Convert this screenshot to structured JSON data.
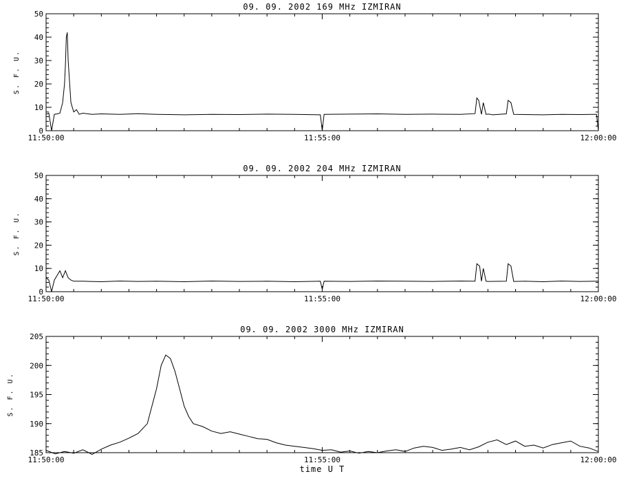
{
  "chart_data": [
    {
      "type": "line",
      "title": "09.  09.  2002    169 MHz    IZMIRAN",
      "ylabel": "S. F. U.",
      "xlabel": "",
      "xlim": [
        "11:50:00",
        "12:00:00"
      ],
      "ylim": [
        0,
        50
      ],
      "yticks": [
        "0",
        "10",
        "20",
        "30",
        "40",
        "50"
      ],
      "xticks": [
        "11:50:00",
        "11:55:00",
        "12:00:00"
      ],
      "series": [
        {
          "x": [
            "11:50:00",
            "11:50:03",
            "11:50:06",
            "11:50:09",
            "11:50:12",
            "11:50:15",
            "11:50:18",
            "11:50:20",
            "11:50:21",
            "11:50:22",
            "11:50:23",
            "11:50:24",
            "11:50:27",
            "11:50:30",
            "11:50:33",
            "11:50:36",
            "11:50:40",
            "11:50:50",
            "11:51:00",
            "11:51:20",
            "11:51:40",
            "11:52:00",
            "11:52:30",
            "11:53:00",
            "11:53:30",
            "11:54:00",
            "11:54:30",
            "11:54:58",
            "11:55:00",
            "11:55:02",
            "11:55:30",
            "11:56:00",
            "11:56:30",
            "11:57:00",
            "11:57:30",
            "11:57:46",
            "11:57:48",
            "11:57:50",
            "11:57:53",
            "11:57:55",
            "11:57:58",
            "11:58:00",
            "11:58:03",
            "11:58:05",
            "11:58:20",
            "11:58:22",
            "11:58:25",
            "11:58:28",
            "11:58:40",
            "11:59:00",
            "11:59:20",
            "11:59:40",
            "11:59:55",
            "11:59:58",
            "12:00:00"
          ],
          "values": [
            7,
            7.5,
            0,
            7,
            7.2,
            7.5,
            12,
            20,
            28,
            40,
            42,
            30,
            12,
            8,
            9,
            7,
            7.5,
            7,
            7.2,
            7,
            7.3,
            7,
            6.8,
            7,
            6.9,
            7.1,
            7,
            6.8,
            0,
            7,
            7.1,
            7.2,
            7,
            7.1,
            7,
            7.3,
            14,
            13,
            7,
            12,
            7,
            7.1,
            7,
            6.8,
            7.2,
            13,
            12,
            7,
            6.9,
            6.8,
            7,
            6.9,
            7,
            7,
            0
          ]
        }
      ]
    },
    {
      "type": "line",
      "title": "09.  09.  2002    204 MHz    IZMIRAN",
      "ylabel": "S. F. U.",
      "xlabel": "",
      "xlim": [
        "11:50:00",
        "12:00:00"
      ],
      "ylim": [
        0,
        50
      ],
      "yticks": [
        "0",
        "10",
        "20",
        "30",
        "40",
        "50"
      ],
      "xticks": [
        "11:50:00",
        "11:55:00",
        "12:00:00"
      ],
      "series": [
        {
          "x": [
            "11:50:00",
            "11:50:03",
            "11:50:06",
            "11:50:09",
            "11:50:12",
            "11:50:15",
            "11:50:18",
            "11:50:21",
            "11:50:24",
            "11:50:27",
            "11:50:30",
            "11:50:40",
            "11:51:00",
            "11:51:20",
            "11:51:40",
            "11:52:00",
            "11:52:30",
            "11:53:00",
            "11:53:30",
            "11:54:00",
            "11:54:30",
            "11:54:58",
            "11:55:00",
            "11:55:02",
            "11:55:30",
            "11:56:00",
            "11:56:30",
            "11:57:00",
            "11:57:30",
            "11:57:46",
            "11:57:48",
            "11:57:51",
            "11:57:53",
            "11:57:55",
            "11:57:58",
            "11:58:00",
            "11:58:20",
            "11:58:22",
            "11:58:25",
            "11:58:28",
            "11:58:40",
            "11:59:00",
            "11:59:20",
            "11:59:40",
            "11:59:58",
            "12:00:00"
          ],
          "values": [
            6,
            5,
            0,
            5,
            7,
            9,
            6,
            9,
            6,
            5,
            4.5,
            4.5,
            4.3,
            4.6,
            4.4,
            4.5,
            4.3,
            4.6,
            4.4,
            4.5,
            4.3,
            4.5,
            1,
            4.5,
            4.4,
            4.6,
            4.5,
            4.4,
            4.6,
            4.5,
            12,
            11,
            4.5,
            10,
            4.5,
            4.4,
            4.5,
            12,
            11,
            4.4,
            4.5,
            4.3,
            4.6,
            4.4,
            4.5,
            4.5
          ]
        }
      ]
    },
    {
      "type": "line",
      "title": "09.  09.  2002    3000 MHz    IZMIRAN",
      "ylabel": "S. F. U.",
      "xlabel": "time  U T",
      "xlim": [
        "11:50:00",
        "12:00:00"
      ],
      "ylim": [
        185,
        205
      ],
      "yticks": [
        "185",
        "190",
        "195",
        "200",
        "205"
      ],
      "xticks": [
        "11:50:00",
        "11:55:00",
        "12:00:00"
      ],
      "series": [
        {
          "x": [
            "11:50:00",
            "11:50:10",
            "11:50:20",
            "11:50:30",
            "11:50:40",
            "11:50:50",
            "11:51:00",
            "11:51:10",
            "11:51:20",
            "11:51:30",
            "11:51:40",
            "11:51:50",
            "11:52:00",
            "11:52:05",
            "11:52:10",
            "11:52:15",
            "11:52:20",
            "11:52:25",
            "11:52:30",
            "11:52:35",
            "11:52:40",
            "11:52:50",
            "11:53:00",
            "11:53:10",
            "11:53:20",
            "11:53:30",
            "11:53:40",
            "11:53:50",
            "11:54:00",
            "11:54:10",
            "11:54:20",
            "11:54:30",
            "11:54:40",
            "11:54:50",
            "11:55:00",
            "11:55:10",
            "11:55:20",
            "11:55:30",
            "11:55:40",
            "11:55:50",
            "11:56:00",
            "11:56:10",
            "11:56:20",
            "11:56:30",
            "11:56:40",
            "11:56:50",
            "11:57:00",
            "11:57:10",
            "11:57:20",
            "11:57:30",
            "11:57:40",
            "11:57:50",
            "11:58:00",
            "11:58:10",
            "11:58:20",
            "11:58:30",
            "11:58:40",
            "11:58:50",
            "11:59:00",
            "11:59:10",
            "11:59:20",
            "11:59:30",
            "11:59:40",
            "11:59:50",
            "12:00:00"
          ],
          "values": [
            185.4,
            184.8,
            185.2,
            184.9,
            185.5,
            184.7,
            185.6,
            186.3,
            186.8,
            187.5,
            188.3,
            190,
            196,
            200,
            201.8,
            201.2,
            199,
            196,
            193,
            191.2,
            190,
            189.5,
            188.7,
            188.3,
            188.6,
            188.2,
            187.8,
            187.4,
            187.3,
            186.7,
            186.3,
            186.1,
            185.9,
            185.7,
            185.4,
            185.5,
            185.1,
            185.3,
            184.9,
            185.2,
            185,
            185.3,
            185.5,
            185.2,
            185.8,
            186.1,
            185.9,
            185.4,
            185.6,
            185.9,
            185.5,
            186,
            186.8,
            187.2,
            186.4,
            187,
            186.1,
            186.3,
            185.8,
            186.4,
            186.7,
            187,
            186.1,
            185.8,
            185.2
          ]
        }
      ]
    }
  ]
}
